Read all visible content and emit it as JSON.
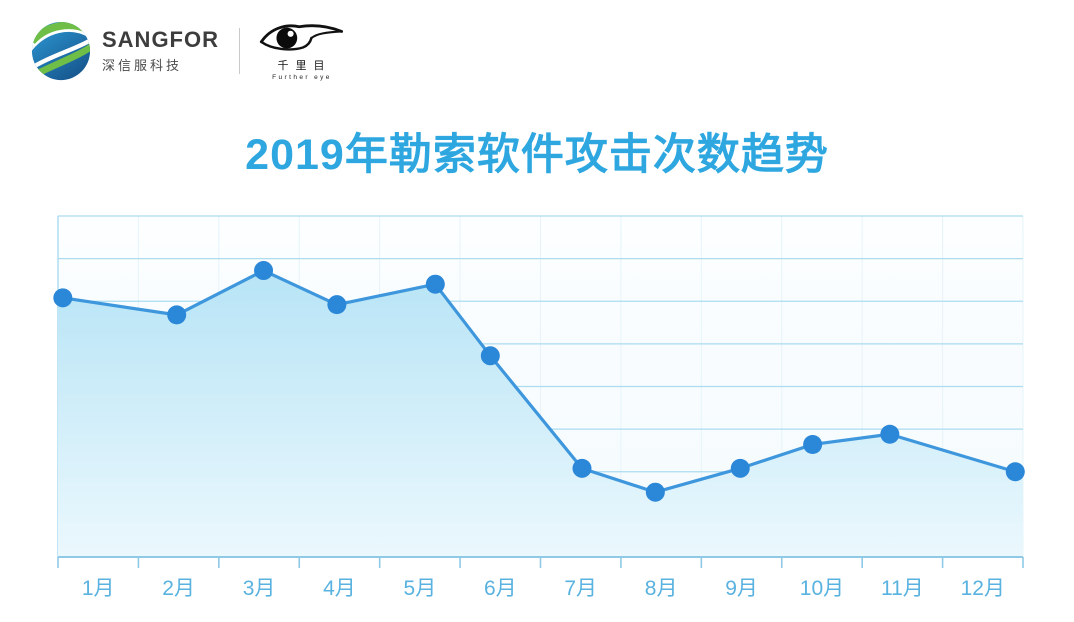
{
  "brand": {
    "sangfor": {
      "wordmark": "SANGFOR",
      "subtitle": "深信服科技"
    },
    "fareye": {
      "cn_name": "千里目",
      "en_name": "Further eye"
    }
  },
  "title": {
    "text": "2019年勒索软件攻击次数趋势",
    "color": "#2EA7E0"
  },
  "chart_data": {
    "type": "area",
    "title": "2019年勒索软件攻击次数趋势",
    "categories": [
      "1月",
      "2月",
      "3月",
      "4月",
      "5月",
      "6月",
      "7月",
      "8月",
      "9月",
      "10月",
      "11月",
      "12月"
    ],
    "values": [
      76,
      71,
      84,
      74,
      80,
      59,
      26,
      19,
      26,
      33,
      36,
      25
    ],
    "value_note": "y-axis has no numeric labels; values estimated on a 0-100 relative scale from the 8 gridline intervals",
    "xlabel": "",
    "ylabel": "",
    "ylim": [
      0,
      100
    ],
    "x_positions_pct": [
      0.5,
      12.3,
      21.3,
      28.9,
      39.1,
      44.8,
      54.3,
      61.9,
      70.7,
      78.2,
      86.2,
      99.2
    ],
    "grid": {
      "horizontal_lines": 8,
      "vertical_ticks": 13,
      "on": true
    },
    "legend": "none",
    "colors": {
      "line": "#3E97DC",
      "point": "#2B87D8",
      "area_top": "#B7E4F6",
      "area_bottom": "#EBF8FD",
      "gridline": "#ABDCEF",
      "v_gridline": "#E6F4FA",
      "axis": "#8FC9E6",
      "tick_label": "#59B2DF",
      "plot_bg_top": "#FCFEFF",
      "plot_bg_bottom": "#F4FAFE"
    }
  }
}
